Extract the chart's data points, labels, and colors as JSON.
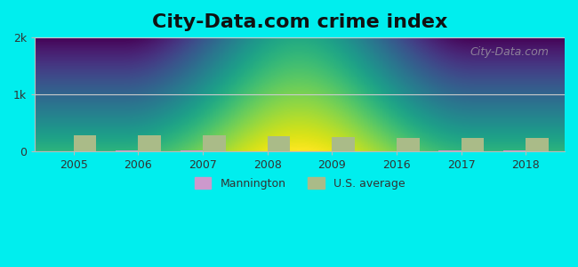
{
  "title": "City-Data.com crime index",
  "title_fontsize": 16,
  "years": [
    2005,
    2006,
    2007,
    2008,
    2009,
    2016,
    2017,
    2018
  ],
  "mannington_values": [
    10,
    15,
    18,
    8,
    5,
    6,
    14,
    22
  ],
  "us_avg_values": [
    280,
    290,
    285,
    265,
    250,
    235,
    240,
    245
  ],
  "mannington_color": "#cc99cc",
  "us_avg_color": "#aabb88",
  "bar_width": 0.35,
  "ylim": [
    0,
    2000
  ],
  "yticks": [
    0,
    1000,
    2000
  ],
  "ytick_labels": [
    "0",
    "1k",
    "2k"
  ],
  "background_color": "#00eeee",
  "plot_bg_top": "#d4ecd4",
  "plot_bg_bottom": "#eefcee",
  "grid_color": "#cccccc",
  "watermark_text": "City-Data.com",
  "legend_mannington": "Mannington",
  "legend_us": "U.S. average",
  "xlabel_color": "#333333",
  "spine_color": "#bbbbbb"
}
